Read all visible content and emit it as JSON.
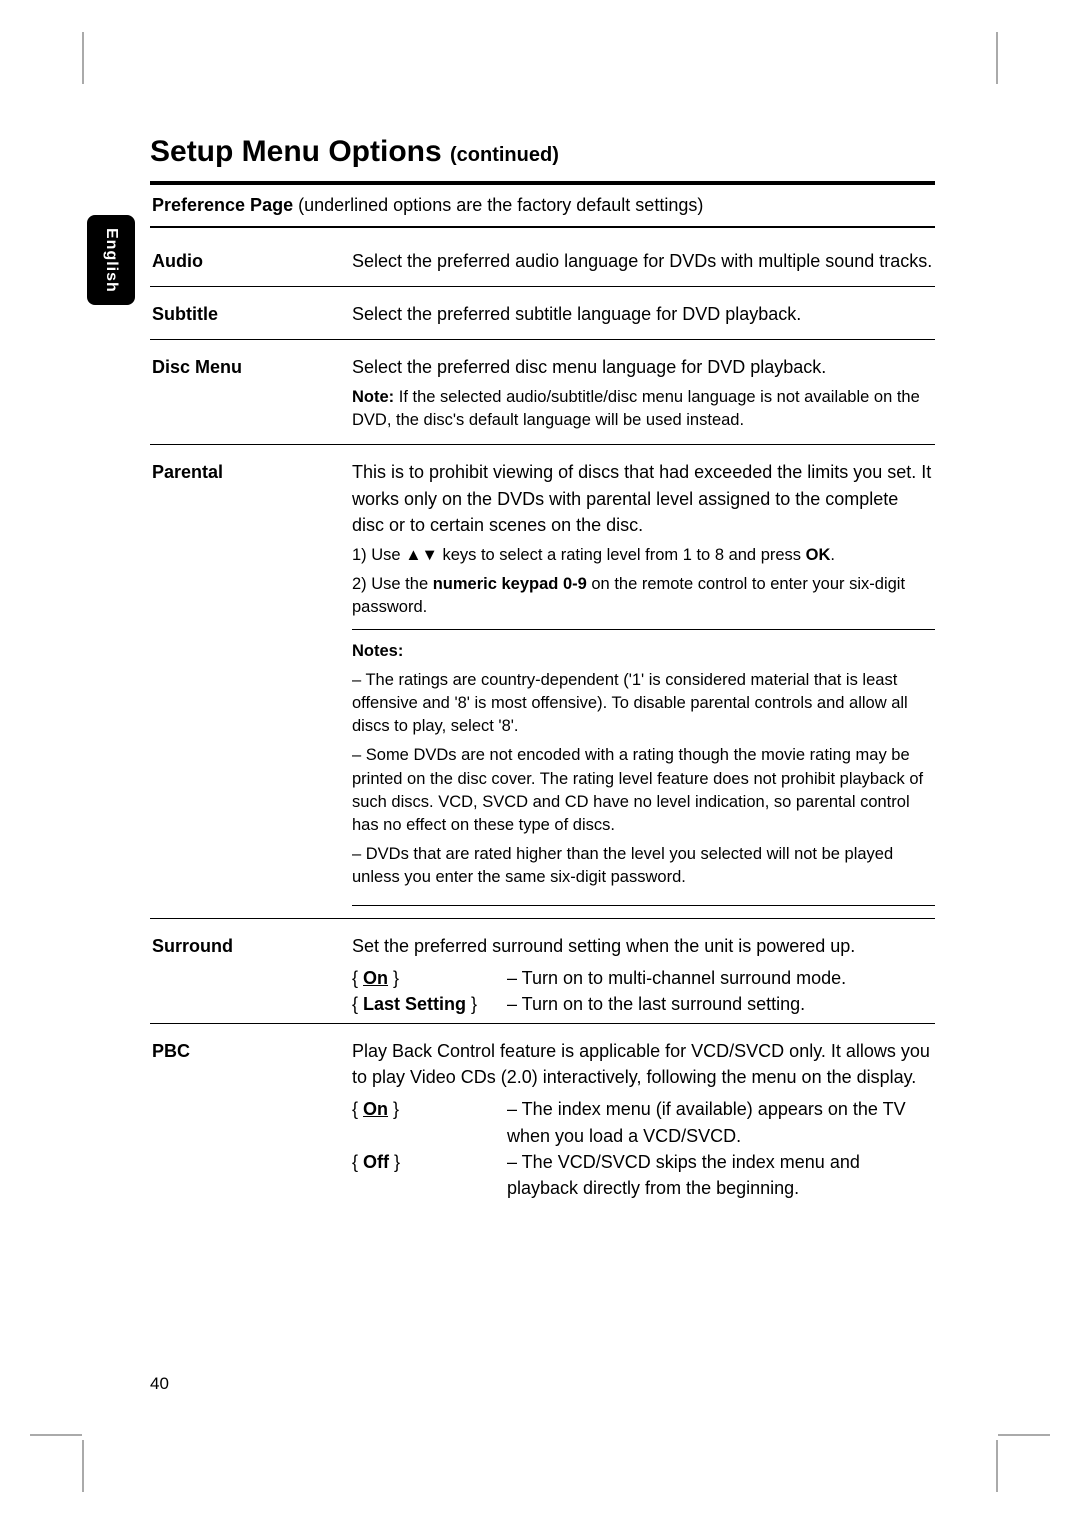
{
  "language_tab": "English",
  "page_number": "40",
  "title_main": "Setup Menu Options",
  "title_cont": "(continued)",
  "section": {
    "head_bold": "Preference Page",
    "head_rest": " (underlined options are the factory default settings)"
  },
  "rows": {
    "audio": {
      "label": "Audio",
      "desc": "Select the preferred audio language for DVDs with multiple sound tracks."
    },
    "subtitle": {
      "label": "Subtitle",
      "desc": "Select the preferred subtitle language for DVD playback."
    },
    "discmenu": {
      "label": "Disc Menu",
      "desc": "Select the preferred disc menu language for DVD playback.",
      "note_label": "Note:",
      "note_text": "  If the selected audio/subtitle/disc menu language is not available on the DVD, the disc's default language will be used instead."
    },
    "parental": {
      "label": "Parental",
      "intro": "This is to prohibit viewing of discs that had exceeded the limits you set. It works only on the DVDs with parental level assigned to the complete disc or to certain scenes on the disc.",
      "step1_pre": "1)   Use ",
      "step1_mid": " keys to select a rating level from 1 to 8 and press ",
      "step1_ok": "OK",
      "step1_post": ".",
      "step2_pre": "2)   Use the ",
      "step2_b": "numeric keypad 0-9",
      "step2_post": " on the remote control to enter your six-digit password.",
      "notes_head": "Notes:",
      "note1": "–  The ratings are country-dependent ('1' is considered material that is least offensive and '8' is most offensive). To disable parental controls and allow all discs to play, select '8'.",
      "note2": "–  Some DVDs are not encoded with a rating though the movie rating may be printed on the disc cover. The rating level feature does not prohibit playback of such discs. VCD, SVCD and CD have no level indication, so parental control has no effect on these type of discs.",
      "note3": "–  DVDs that are rated higher than the level you selected will not be played unless you enter the same six-digit password."
    },
    "surround": {
      "label": "Surround",
      "intro": "Set the preferred surround setting when the unit is powered up.",
      "on_key": "On",
      "on_desc": "–  Turn on to multi-channel surround mode.",
      "last_key": "Last Setting",
      "last_desc": "–  Turn on to the last surround setting."
    },
    "pbc": {
      "label": "PBC",
      "intro": "Play Back Control feature is applicable for VCD/SVCD only. It allows you to play Video CDs (2.0) interactively, following the menu on the display.",
      "on_key": "On",
      "on_desc": "–  The index menu (if available) appears on the TV when you load a VCD/SVCD.",
      "off_key": "Off",
      "off_desc": "–  The VCD/SVCD skips the index menu and playback directly from the beginning."
    }
  }
}
